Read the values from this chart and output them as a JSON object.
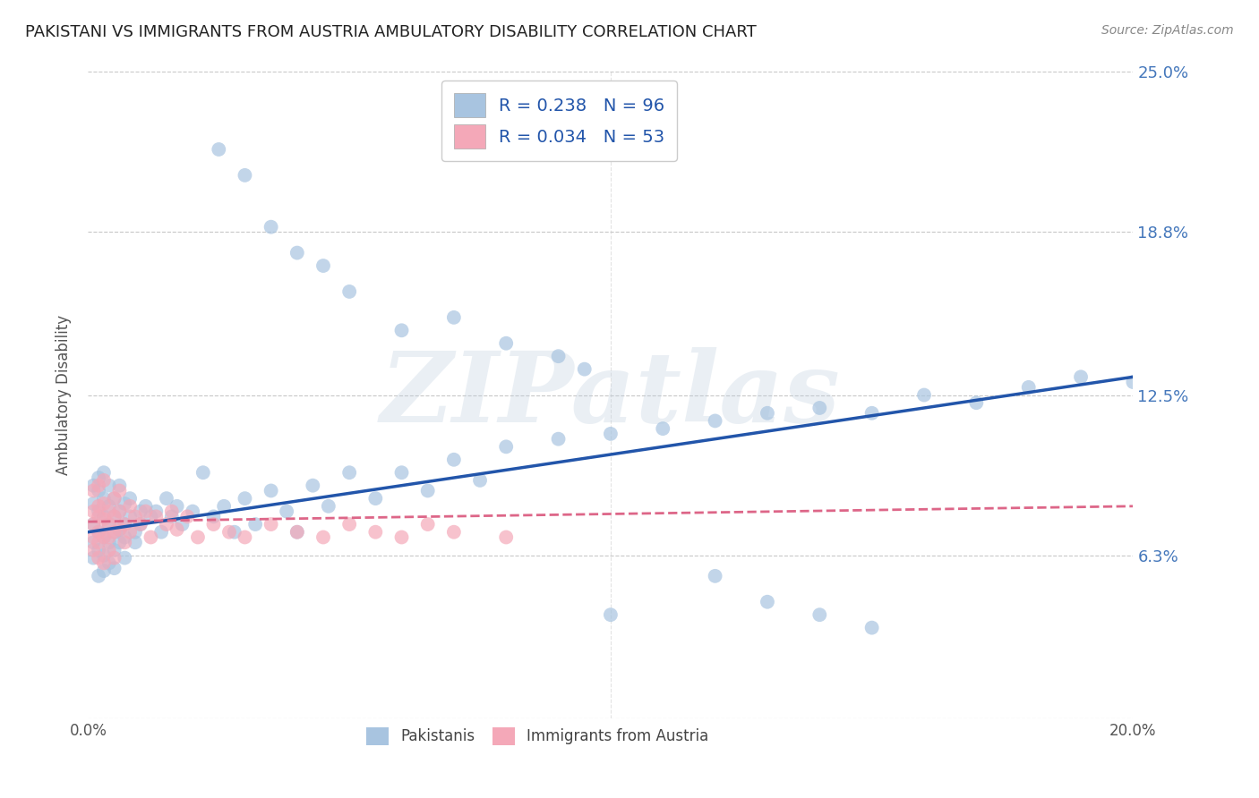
{
  "title": "PAKISTANI VS IMMIGRANTS FROM AUSTRIA AMBULATORY DISABILITY CORRELATION CHART",
  "source": "Source: ZipAtlas.com",
  "ylabel": "Ambulatory Disability",
  "watermark": "ZIPatlas",
  "xlim": [
    0.0,
    0.2
  ],
  "ylim": [
    0.0,
    0.25
  ],
  "ytick_positions": [
    0.0,
    0.063,
    0.125,
    0.188,
    0.25
  ],
  "ytick_labels": [
    "",
    "6.3%",
    "12.5%",
    "18.8%",
    "25.0%"
  ],
  "pakistanis_R": 0.238,
  "pakistanis_N": 96,
  "austria_R": 0.034,
  "austria_N": 53,
  "blue_color": "#A8C4E0",
  "pink_color": "#F4A8B8",
  "blue_line_color": "#2255AA",
  "pink_line_color": "#DD6688",
  "grid_color": "#C8C8C8",
  "title_color": "#222222",
  "right_label_color": "#4477BB",
  "legend_text_color": "#2255AA",
  "pakistanis_x": [
    0.001,
    0.001,
    0.001,
    0.001,
    0.001,
    0.002,
    0.002,
    0.002,
    0.002,
    0.002,
    0.002,
    0.003,
    0.003,
    0.003,
    0.003,
    0.003,
    0.003,
    0.004,
    0.004,
    0.004,
    0.004,
    0.004,
    0.005,
    0.005,
    0.005,
    0.005,
    0.005,
    0.006,
    0.006,
    0.006,
    0.006,
    0.007,
    0.007,
    0.007,
    0.007,
    0.008,
    0.008,
    0.009,
    0.009,
    0.01,
    0.01,
    0.011,
    0.012,
    0.013,
    0.014,
    0.015,
    0.016,
    0.017,
    0.018,
    0.02,
    0.022,
    0.024,
    0.026,
    0.028,
    0.03,
    0.032,
    0.035,
    0.038,
    0.04,
    0.043,
    0.046,
    0.05,
    0.055,
    0.06,
    0.065,
    0.07,
    0.075,
    0.08,
    0.09,
    0.1,
    0.11,
    0.12,
    0.13,
    0.14,
    0.15,
    0.16,
    0.17,
    0.18,
    0.19,
    0.2,
    0.025,
    0.03,
    0.035,
    0.04,
    0.045,
    0.05,
    0.06,
    0.07,
    0.08,
    0.09,
    0.095,
    0.1,
    0.12,
    0.13,
    0.14,
    0.15
  ],
  "pakistanis_y": [
    0.083,
    0.075,
    0.068,
    0.062,
    0.09,
    0.08,
    0.072,
    0.065,
    0.055,
    0.088,
    0.093,
    0.078,
    0.07,
    0.063,
    0.085,
    0.057,
    0.095,
    0.075,
    0.068,
    0.082,
    0.06,
    0.09,
    0.078,
    0.072,
    0.065,
    0.085,
    0.058,
    0.08,
    0.073,
    0.068,
    0.09,
    0.075,
    0.07,
    0.083,
    0.062,
    0.078,
    0.085,
    0.072,
    0.068,
    0.08,
    0.075,
    0.082,
    0.078,
    0.08,
    0.072,
    0.085,
    0.078,
    0.082,
    0.075,
    0.08,
    0.095,
    0.078,
    0.082,
    0.072,
    0.085,
    0.075,
    0.088,
    0.08,
    0.072,
    0.09,
    0.082,
    0.095,
    0.085,
    0.095,
    0.088,
    0.1,
    0.092,
    0.105,
    0.108,
    0.11,
    0.112,
    0.115,
    0.118,
    0.12,
    0.118,
    0.125,
    0.122,
    0.128,
    0.132,
    0.13,
    0.22,
    0.21,
    0.19,
    0.18,
    0.175,
    0.165,
    0.15,
    0.155,
    0.145,
    0.14,
    0.135,
    0.04,
    0.055,
    0.045,
    0.04,
    0.035
  ],
  "austria_x": [
    0.001,
    0.001,
    0.001,
    0.001,
    0.001,
    0.002,
    0.002,
    0.002,
    0.002,
    0.002,
    0.002,
    0.003,
    0.003,
    0.003,
    0.003,
    0.003,
    0.004,
    0.004,
    0.004,
    0.004,
    0.005,
    0.005,
    0.005,
    0.005,
    0.006,
    0.006,
    0.006,
    0.007,
    0.007,
    0.008,
    0.008,
    0.009,
    0.01,
    0.011,
    0.012,
    0.013,
    0.015,
    0.016,
    0.017,
    0.019,
    0.021,
    0.024,
    0.027,
    0.03,
    0.035,
    0.04,
    0.045,
    0.05,
    0.055,
    0.06,
    0.065,
    0.07,
    0.08
  ],
  "austria_y": [
    0.08,
    0.075,
    0.07,
    0.065,
    0.088,
    0.078,
    0.072,
    0.068,
    0.082,
    0.062,
    0.09,
    0.077,
    0.07,
    0.083,
    0.06,
    0.092,
    0.075,
    0.07,
    0.08,
    0.065,
    0.078,
    0.072,
    0.085,
    0.062,
    0.08,
    0.073,
    0.088,
    0.075,
    0.068,
    0.082,
    0.072,
    0.078,
    0.075,
    0.08,
    0.07,
    0.078,
    0.075,
    0.08,
    0.073,
    0.078,
    0.07,
    0.075,
    0.072,
    0.07,
    0.075,
    0.072,
    0.07,
    0.075,
    0.072,
    0.07,
    0.075,
    0.072,
    0.07
  ]
}
